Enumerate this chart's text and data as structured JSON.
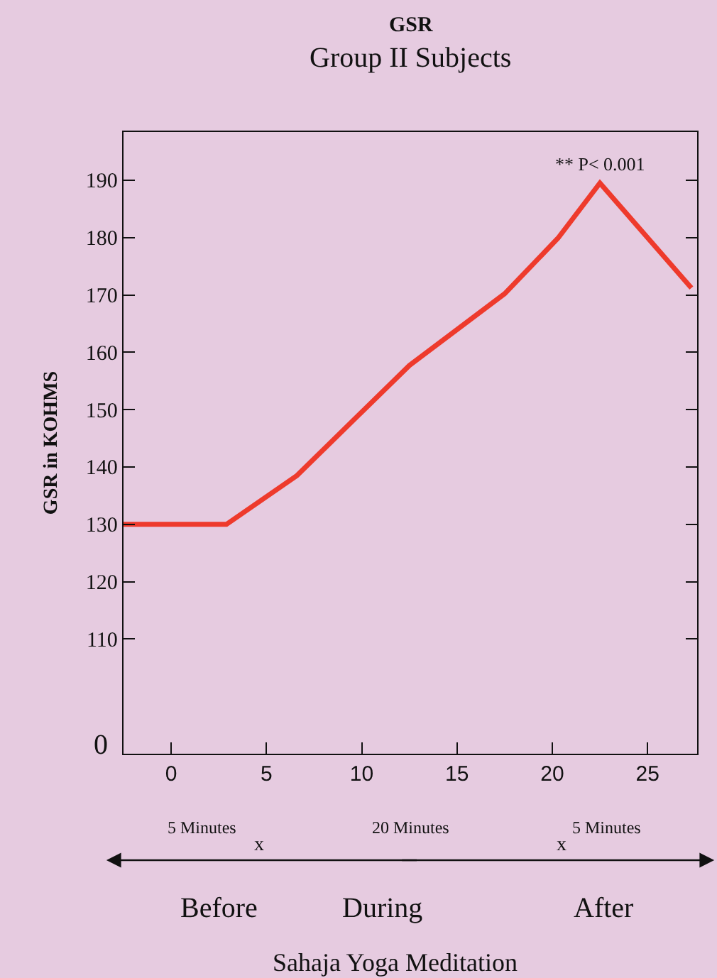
{
  "chart_data": {
    "type": "line",
    "title": "GSR",
    "subtitle": "Group II Subjects",
    "ylabel": "GSR in KOHMS",
    "x": [
      -2.5,
      2.9,
      6.6,
      12.5,
      17.5,
      20.3,
      22.5,
      27.3
    ],
    "series": [
      {
        "color": "#ee3a2c",
        "values": [
          130,
          130,
          138.5,
          157.7,
          170.2,
          179.9,
          189.5,
          171.2
        ]
      }
    ],
    "xlim": [
      -2.5,
      27.6
    ],
    "xticks": [
      0,
      5,
      10,
      15,
      20,
      25
    ],
    "ylim": [
      90,
      198.4
    ],
    "yticks": [
      110,
      120,
      130,
      140,
      150,
      160,
      170,
      180,
      190
    ],
    "annotations": [
      {
        "text": "** P< 0.001",
        "x": 22.5,
        "y": 189.5
      },
      "5 Minutes",
      "20 Minutes",
      "5 Minutes",
      "x",
      "x",
      "Before",
      "During",
      "After",
      "Sahaja Yoga Meditation",
      "0"
    ],
    "grid": false,
    "marker": "none",
    "line_style": "solid"
  }
}
